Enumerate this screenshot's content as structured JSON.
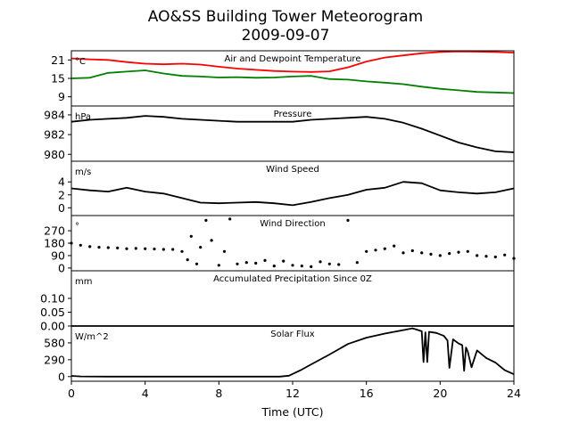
{
  "title_line1": "AO&SS Building Tower Meteorogram",
  "title_line2": "2009-09-07",
  "xlabel": "Time (UTC)",
  "x_ticks": [
    "0",
    "4",
    "8",
    "12",
    "16",
    "20",
    "24"
  ],
  "chart_data": [
    {
      "type": "line",
      "title": "Air and Dewpoint Temperature",
      "ylabel": "°C",
      "ylim": [
        6,
        24
      ],
      "yticks": [
        9,
        15,
        21
      ],
      "xlim": [
        0,
        24
      ],
      "series": [
        {
          "color": "#ff0000",
          "x": [
            0,
            1,
            2,
            3,
            4,
            5,
            6,
            7,
            8,
            9,
            10,
            11,
            12,
            13,
            14,
            15,
            16,
            17,
            18,
            19,
            20,
            21,
            22,
            23,
            24
          ],
          "values": [
            21.5,
            21.2,
            21.0,
            20.3,
            19.8,
            19.6,
            19.8,
            19.5,
            18.8,
            18.2,
            17.8,
            17.4,
            17.2,
            17.1,
            17.3,
            18.6,
            20.5,
            21.8,
            22.5,
            23.2,
            23.6,
            23.8,
            23.7,
            23.6,
            23.4
          ]
        },
        {
          "color": "#008000",
          "x": [
            0,
            1,
            2,
            3,
            4,
            5,
            6,
            7,
            8,
            9,
            10,
            11,
            12,
            13,
            14,
            15,
            16,
            17,
            18,
            19,
            20,
            21,
            22,
            23,
            24
          ],
          "values": [
            15.0,
            15.2,
            16.8,
            17.2,
            17.6,
            16.6,
            15.8,
            15.6,
            15.3,
            15.4,
            15.2,
            15.3,
            15.6,
            15.8,
            14.8,
            14.6,
            14.0,
            13.6,
            13.1,
            12.3,
            11.6,
            11.1,
            10.6,
            10.4,
            10.2
          ]
        }
      ]
    },
    {
      "type": "line",
      "title": "Pressure",
      "ylabel": "hPa",
      "ylim": [
        979.3,
        984.9
      ],
      "yticks": [
        980,
        982,
        984
      ],
      "xlim": [
        0,
        24
      ],
      "series": [
        {
          "color": "#000000",
          "x": [
            0,
            1,
            2,
            3,
            4,
            5,
            6,
            7,
            8,
            9,
            10,
            11,
            12,
            13,
            14,
            15,
            16,
            17,
            18,
            19,
            20,
            21,
            22,
            23,
            24
          ],
          "values": [
            983.3,
            983.5,
            983.6,
            983.7,
            983.9,
            983.8,
            983.6,
            983.5,
            983.4,
            983.3,
            983.3,
            983.3,
            983.3,
            983.5,
            983.6,
            983.7,
            983.8,
            983.6,
            983.2,
            982.6,
            981.9,
            981.2,
            980.7,
            980.3,
            980.2
          ]
        }
      ]
    },
    {
      "type": "line",
      "title": "Wind Speed",
      "ylabel": "m/s",
      "ylim": [
        -1.2,
        7.2
      ],
      "yticks": [
        0,
        2,
        4
      ],
      "xlim": [
        0,
        24
      ],
      "series": [
        {
          "color": "#000000",
          "x": [
            0,
            1,
            2,
            3,
            4,
            5,
            6,
            7,
            8,
            9,
            10,
            11,
            12,
            13,
            14,
            15,
            16,
            17,
            18,
            19,
            20,
            21,
            22,
            23,
            24
          ],
          "values": [
            3.0,
            2.7,
            2.5,
            3.1,
            2.5,
            2.2,
            1.5,
            0.8,
            0.7,
            0.8,
            0.9,
            0.7,
            0.4,
            0.9,
            1.5,
            2.0,
            2.8,
            3.1,
            4.0,
            3.8,
            2.7,
            2.4,
            2.2,
            2.4,
            3.0
          ]
        }
      ]
    },
    {
      "type": "scatter",
      "title": "Wind Direction",
      "ylabel": "°",
      "ylim": [
        -20,
        380
      ],
      "yticks": [
        0,
        90,
        180,
        270
      ],
      "xlim": [
        0,
        24
      ],
      "series": [
        {
          "color": "#000000",
          "x": [
            0,
            0.5,
            1,
            1.5,
            2,
            2.5,
            3,
            3.5,
            4,
            4.5,
            5,
            5.5,
            6,
            6.3,
            6.5,
            6.8,
            7.0,
            7.3,
            7.6,
            8.0,
            8.3,
            8.6,
            9,
            9.5,
            10,
            10.5,
            11,
            11.5,
            12,
            12.5,
            13,
            13.5,
            14,
            14.5,
            15,
            15.5,
            16,
            16.5,
            17,
            17.5,
            18,
            18.5,
            19,
            19.5,
            20,
            20.5,
            21,
            21.5,
            22,
            22.5,
            23,
            23.5,
            24
          ],
          "values": [
            180,
            165,
            155,
            150,
            148,
            145,
            140,
            142,
            140,
            138,
            135,
            135,
            120,
            60,
            230,
            30,
            150,
            345,
            200,
            20,
            120,
            355,
            30,
            40,
            35,
            55,
            15,
            50,
            20,
            15,
            10,
            45,
            30,
            25,
            345,
            40,
            120,
            130,
            140,
            160,
            110,
            125,
            110,
            100,
            90,
            105,
            115,
            120,
            90,
            85,
            80,
            95,
            70
          ]
        }
      ]
    },
    {
      "type": "line",
      "title": "Accumulated Precipitation Since 0Z",
      "ylabel": "mm",
      "ylim": [
        0,
        0.2
      ],
      "yticks": [
        0.0,
        0.05,
        0.1
      ],
      "ytick_labels": [
        "0.00",
        "0.05",
        "0.10"
      ],
      "xlim": [
        0,
        24
      ],
      "series": [
        {
          "color": "#000000",
          "x": [
            0,
            24
          ],
          "values": [
            0,
            0
          ]
        }
      ]
    },
    {
      "type": "line",
      "title": "Solar Flux",
      "ylabel": "W/m^2",
      "ylim": [
        -80,
        870
      ],
      "yticks": [
        0,
        290,
        580
      ],
      "xlim": [
        0,
        24
      ],
      "series": [
        {
          "color": "#000000",
          "x": [
            0,
            0.5,
            2,
            11.3,
            11.8,
            12.5,
            13,
            14,
            15,
            16,
            17,
            18,
            18.5,
            18.7,
            19.0,
            19.1,
            19.2,
            19.3,
            19.4,
            19.6,
            19.8,
            20.2,
            20.4,
            20.5,
            20.7,
            21.0,
            21.2,
            21.3,
            21.4,
            21.5,
            21.7,
            22.0,
            22.5,
            23.0,
            23.5,
            24
          ],
          "values": [
            12,
            2,
            0,
            0,
            15,
            120,
            210,
            380,
            560,
            670,
            740,
            800,
            830,
            810,
            780,
            250,
            760,
            250,
            770,
            760,
            750,
            700,
            620,
            150,
            640,
            570,
            540,
            100,
            500,
            430,
            160,
            450,
            320,
            240,
            110,
            40
          ]
        }
      ]
    }
  ]
}
